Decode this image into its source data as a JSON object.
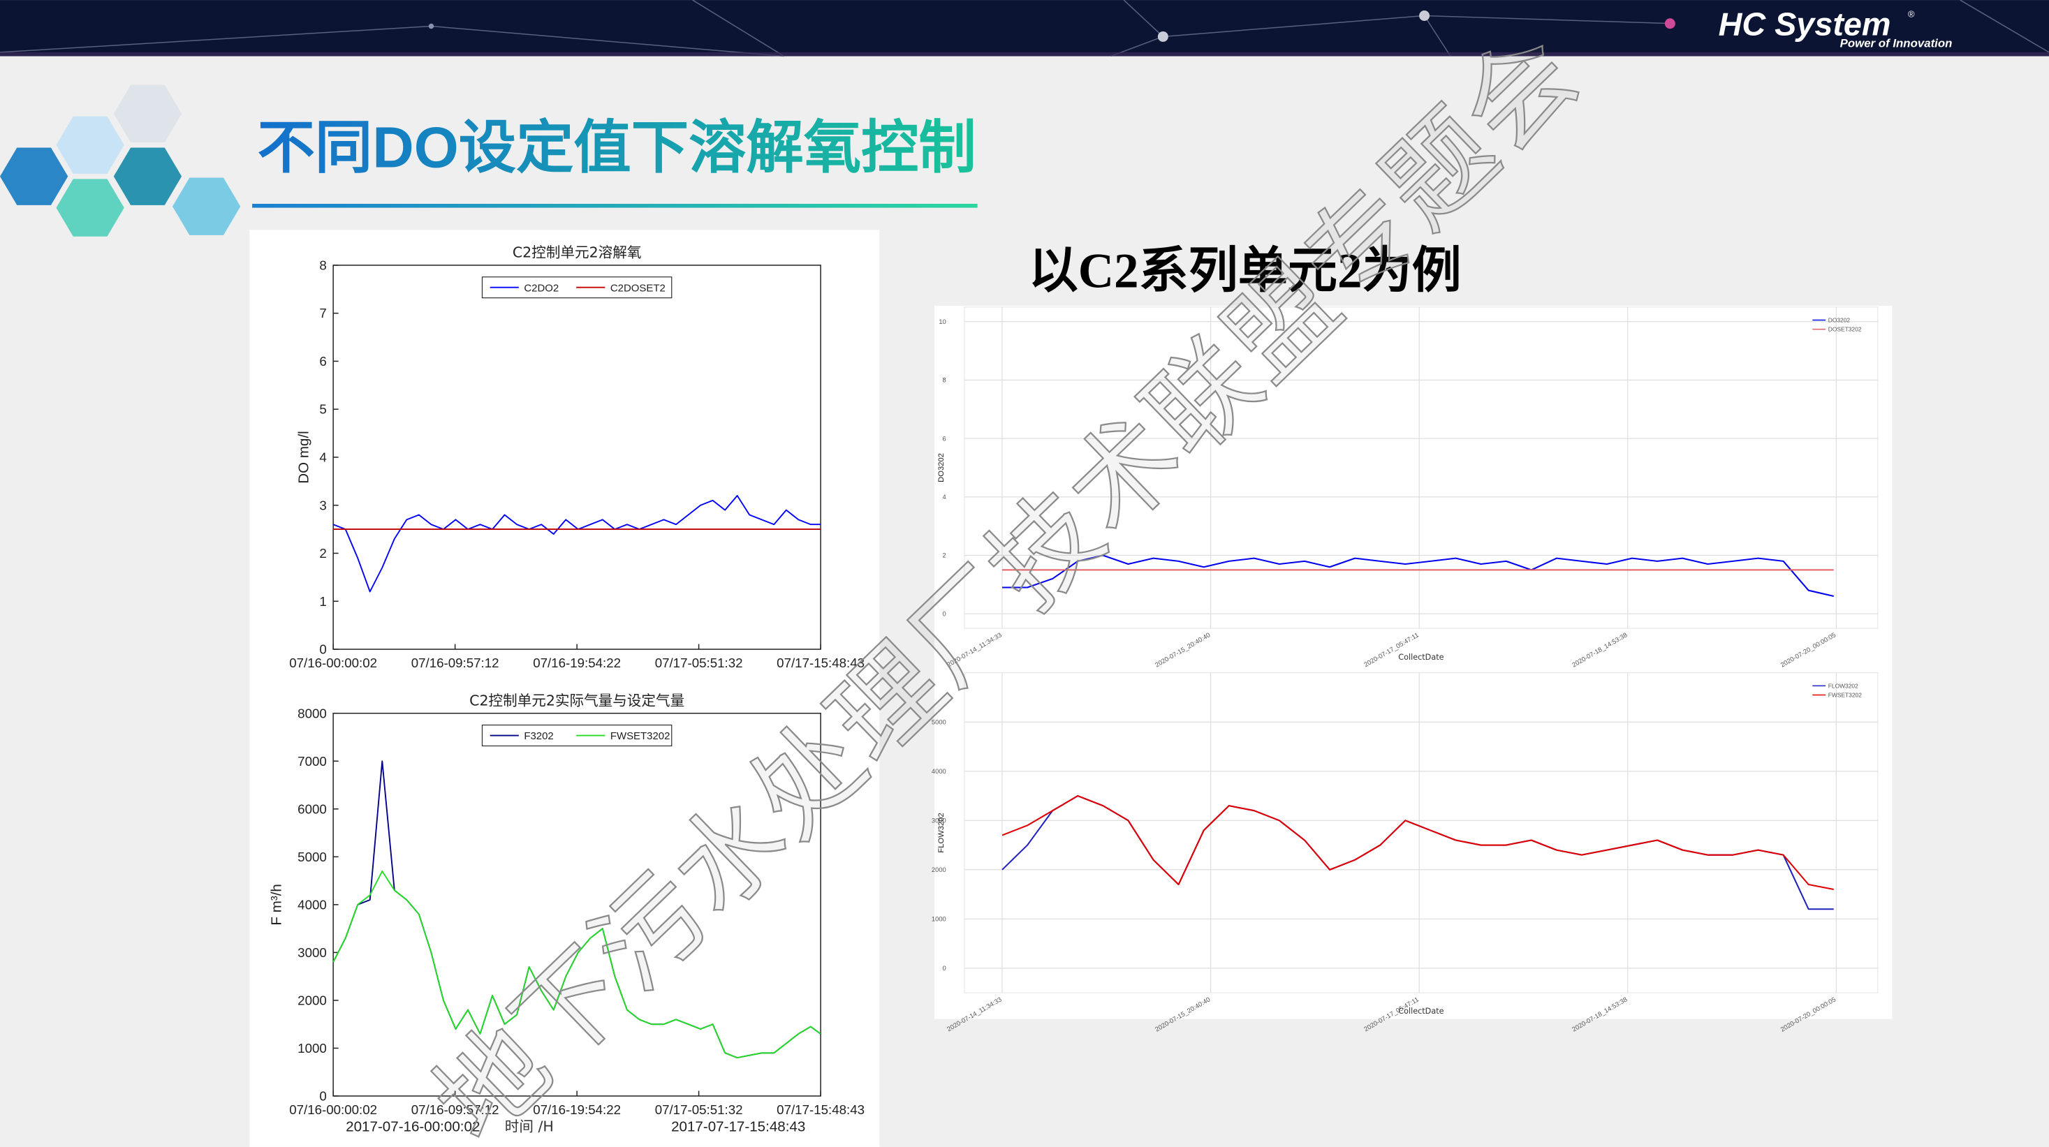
{
  "slide": {
    "brand": "HC System",
    "brand_mark": "®",
    "tagline": "Power of Innovation",
    "title": "不同DO设定值下溶解氧控制",
    "subtitle": "以C2系列单元2为例",
    "watermark": "地下污水处理厂技术联盟专题会"
  },
  "chart_data": [
    {
      "type": "line",
      "title": "C2控制单元2溶解氧",
      "ylabel": "DO mg/l",
      "box": true,
      "grid": false,
      "legend": "upper center",
      "xlim": [
        0,
        39.812
      ],
      "xticks": [
        {
          "value": 0,
          "label": "07/16-00:00:02"
        },
        {
          "value": 9.953,
          "label": "07/16-09:57:12"
        },
        {
          "value": 19.906,
          "label": "07/16-19:54:22"
        },
        {
          "value": 29.859,
          "label": "07/17-05:51:32"
        },
        {
          "value": 39.812,
          "label": "07/17-15:48:43"
        }
      ],
      "ylim": [
        0,
        8
      ],
      "yticks": [
        0,
        1,
        2,
        3,
        4,
        5,
        6,
        7,
        8
      ],
      "series": [
        {
          "name": "C2DO2",
          "color": "#0000ff",
          "x": [
            0,
            1,
            2,
            3,
            4,
            5,
            6,
            7,
            8,
            9,
            10,
            11,
            12,
            13,
            14,
            15,
            16,
            17,
            18,
            19,
            20,
            21,
            22,
            23,
            24,
            25,
            26,
            27,
            28,
            29,
            30,
            31,
            32,
            33,
            34,
            35,
            36,
            37,
            38,
            39,
            39.8
          ],
          "values": [
            2.6,
            2.5,
            1.9,
            1.2,
            1.7,
            2.3,
            2.7,
            2.8,
            2.6,
            2.5,
            2.7,
            2.5,
            2.6,
            2.5,
            2.8,
            2.6,
            2.5,
            2.6,
            2.4,
            2.7,
            2.5,
            2.6,
            2.7,
            2.5,
            2.6,
            2.5,
            2.6,
            2.7,
            2.6,
            2.8,
            3.0,
            3.1,
            2.9,
            3.2,
            2.8,
            2.7,
            2.6,
            2.9,
            2.7,
            2.6,
            2.6
          ]
        },
        {
          "name": "C2DOSET2",
          "color": "#c00000",
          "x": [
            0,
            39.8
          ],
          "values": [
            2.5,
            2.5
          ]
        }
      ]
    },
    {
      "type": "line",
      "title": "C2控制单元2实际气量与设定气量",
      "ylabel": "F m³/h",
      "xlabel": "时间 /H",
      "x_start": "2017-07-16-00:00:02",
      "x_end": "2017-07-17-15:48:43",
      "box": true,
      "grid": false,
      "legend": "upper center",
      "xlim": [
        0,
        39.812
      ],
      "xticks": [
        {
          "value": 0,
          "label": "07/16-00:00:02"
        },
        {
          "value": 9.953,
          "label": "07/16-09:57:12"
        },
        {
          "value": 19.906,
          "label": "07/16-19:54:22"
        },
        {
          "value": 29.859,
          "label": "07/17-05:51:32"
        },
        {
          "value": 39.812,
          "label": "07/17-15:48:43"
        }
      ],
      "ylim": [
        0,
        8000
      ],
      "yticks": [
        0,
        1000,
        2000,
        3000,
        4000,
        5000,
        6000,
        7000,
        8000
      ],
      "series": [
        {
          "name": "F3202",
          "color": "#00008b",
          "x": [
            0,
            1,
            2,
            3,
            4,
            5,
            6,
            7,
            8,
            9,
            10,
            11,
            12,
            13,
            14,
            15,
            16,
            17,
            18,
            19,
            20,
            21,
            22,
            23,
            24,
            25,
            26,
            27,
            28,
            29,
            30,
            31,
            32,
            33,
            34,
            35,
            36,
            37,
            38,
            39,
            39.8
          ],
          "values": [
            2800,
            3300,
            4000,
            4100,
            7000,
            4300,
            4100,
            3800,
            3000,
            2000,
            1400,
            1800,
            1300,
            2100,
            1500,
            1700,
            2700,
            2200,
            1800,
            2500,
            3000,
            3300,
            3500,
            2500,
            1800,
            1600,
            1500,
            1500,
            1600,
            1500,
            1400,
            1500,
            900,
            800,
            850,
            900,
            900,
            1100,
            1300,
            1450,
            1300
          ]
        },
        {
          "name": "FWSET3202",
          "color": "#22dd22",
          "x": [
            0,
            1,
            2,
            3,
            4,
            5,
            6,
            7,
            8,
            9,
            10,
            11,
            12,
            13,
            14,
            15,
            16,
            17,
            18,
            19,
            20,
            21,
            22,
            23,
            24,
            25,
            26,
            27,
            28,
            29,
            30,
            31,
            32,
            33,
            34,
            35,
            36,
            37,
            38,
            39,
            39.8
          ],
          "values": [
            2800,
            3300,
            4000,
            4200,
            4700,
            4300,
            4100,
            3800,
            3000,
            2000,
            1400,
            1800,
            1300,
            2100,
            1500,
            1700,
            2700,
            2200,
            1800,
            2500,
            3000,
            3300,
            3500,
            2500,
            1800,
            1600,
            1500,
            1500,
            1600,
            1500,
            1400,
            1500,
            900,
            800,
            850,
            900,
            900,
            1100,
            1300,
            1450,
            1300
          ]
        }
      ]
    },
    {
      "type": "line",
      "ylabel": "DO3202",
      "xlabel": "CollectDate",
      "box": false,
      "grid": true,
      "legend": "upper right",
      "xlim": [
        -6,
        139
      ],
      "xticks": [
        {
          "value": 0,
          "label": "2020-07-14_11:34:33"
        },
        {
          "value": 33.1,
          "label": "2020-07-15_20:40:40"
        },
        {
          "value": 66.2,
          "label": "2020-07-17_05:47:11"
        },
        {
          "value": 99.3,
          "label": "2020-07-18_14:53:38"
        },
        {
          "value": 132.4,
          "label": "2020-07-20_00:00:05"
        }
      ],
      "ylim": [
        -0.5,
        10.5
      ],
      "yticks": [
        0,
        2,
        4,
        6,
        8,
        10
      ],
      "series": [
        {
          "name": "DO3202",
          "color": "#0000ee",
          "x": [
            0,
            4,
            8,
            12,
            16,
            20,
            24,
            28,
            32,
            36,
            40,
            44,
            48,
            52,
            56,
            60,
            64,
            68,
            72,
            76,
            80,
            84,
            88,
            92,
            96,
            100,
            104,
            108,
            112,
            116,
            120,
            124,
            128,
            132
          ],
          "values": [
            0.9,
            0.9,
            1.2,
            1.8,
            2.0,
            1.7,
            1.9,
            1.8,
            1.6,
            1.8,
            1.9,
            1.7,
            1.8,
            1.6,
            1.9,
            1.8,
            1.7,
            1.8,
            1.9,
            1.7,
            1.8,
            1.5,
            1.9,
            1.8,
            1.7,
            1.9,
            1.8,
            1.9,
            1.7,
            1.8,
            1.9,
            1.8,
            0.8,
            0.6
          ]
        },
        {
          "name": "DOSET3202",
          "color": "#e06060",
          "x": [
            0,
            132
          ],
          "values": [
            1.5,
            1.5
          ]
        }
      ]
    },
    {
      "type": "line",
      "ylabel": "FLOW3202",
      "xlabel": "CollectDate",
      "box": false,
      "grid": true,
      "legend": "upper right",
      "xlim": [
        -6,
        139
      ],
      "xticks": [
        {
          "value": 0,
          "label": "2020-07-14_11:34:33"
        },
        {
          "value": 33.1,
          "label": "2020-07-15_20:40:40"
        },
        {
          "value": 66.2,
          "label": "2020-07-17_05:47:11"
        },
        {
          "value": 99.3,
          "label": "2020-07-18_14:53:38"
        },
        {
          "value": 132.4,
          "label": "2020-07-20_00:00:05"
        }
      ],
      "ylim": [
        -500,
        6000
      ],
      "yticks": [
        0,
        1000,
        2000,
        3000,
        4000,
        5000
      ],
      "series": [
        {
          "name": "FLOW3202",
          "color": "#2020c0",
          "x": [
            0,
            4,
            8,
            12,
            16,
            20,
            24,
            28,
            32,
            36,
            40,
            44,
            48,
            52,
            56,
            60,
            64,
            68,
            72,
            76,
            80,
            84,
            88,
            92,
            96,
            100,
            104,
            108,
            112,
            116,
            120,
            124,
            128,
            132
          ],
          "values": [
            2000,
            2500,
            3200,
            3500,
            3300,
            3000,
            2200,
            1700,
            2800,
            3300,
            3200,
            3000,
            2600,
            2000,
            2200,
            2500,
            3000,
            2800,
            2600,
            2500,
            2500,
            2600,
            2400,
            2300,
            2400,
            2500,
            2600,
            2400,
            2300,
            2300,
            2400,
            2300,
            1200,
            1200
          ]
        },
        {
          "name": "FWSET3202",
          "color": "#e00000",
          "x": [
            0,
            4,
            8,
            12,
            16,
            20,
            24,
            28,
            32,
            36,
            40,
            44,
            48,
            52,
            56,
            60,
            64,
            68,
            72,
            76,
            80,
            84,
            88,
            92,
            96,
            100,
            104,
            108,
            112,
            116,
            120,
            124,
            128,
            132
          ],
          "values": [
            2700,
            2900,
            3200,
            3500,
            3300,
            3000,
            2200,
            1700,
            2800,
            3300,
            3200,
            3000,
            2600,
            2000,
            2200,
            2500,
            3000,
            2800,
            2600,
            2500,
            2500,
            2600,
            2400,
            2300,
            2400,
            2500,
            2600,
            2400,
            2300,
            2300,
            2400,
            2300,
            1700,
            1600
          ]
        }
      ]
    }
  ]
}
